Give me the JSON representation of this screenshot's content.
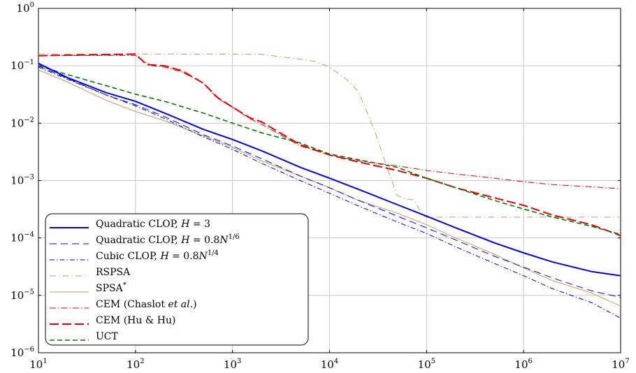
{
  "chart_data": {
    "type": "line",
    "title": "",
    "xlabel": "",
    "ylabel": "",
    "xscale": "log",
    "yscale": "log",
    "xlim": [
      10,
      10000000
    ],
    "ylim": [
      1e-06,
      1
    ],
    "grid": true,
    "legend_position": "bottom-left",
    "x_ticks": [
      {
        "value": 10,
        "base": "10",
        "exp": "1"
      },
      {
        "value": 100,
        "base": "10",
        "exp": "2"
      },
      {
        "value": 1000,
        "base": "10",
        "exp": "3"
      },
      {
        "value": 10000,
        "base": "10",
        "exp": "4"
      },
      {
        "value": 100000,
        "base": "10",
        "exp": "5"
      },
      {
        "value": 1000000,
        "base": "10",
        "exp": "6"
      },
      {
        "value": 10000000,
        "base": "10",
        "exp": "7"
      }
    ],
    "y_ticks": [
      {
        "value": 1e-06,
        "base": "10",
        "exp": "−6"
      },
      {
        "value": 1e-05,
        "base": "10",
        "exp": "−5"
      },
      {
        "value": 0.0001,
        "base": "10",
        "exp": "−4"
      },
      {
        "value": 0.001,
        "base": "10",
        "exp": "−3"
      },
      {
        "value": 0.01,
        "base": "10",
        "exp": "−2"
      },
      {
        "value": 0.1,
        "base": "10",
        "exp": "−1"
      },
      {
        "value": 1,
        "base": "10",
        "exp": "0"
      }
    ],
    "series": [
      {
        "name": "Quadratic CLOP, H = 3",
        "legend": [
          {
            "t": "Quadratic CLOP, "
          },
          {
            "t": "H",
            "i": true
          },
          {
            "t": " = 3"
          }
        ],
        "color": "#0000e6",
        "width": 2.0,
        "dash": "",
        "points": [
          [
            10,
            0.11
          ],
          [
            20,
            0.062
          ],
          [
            50,
            0.034
          ],
          [
            100,
            0.024
          ],
          [
            200,
            0.015
          ],
          [
            500,
            0.0078
          ],
          [
            1000,
            0.0052
          ],
          [
            2000,
            0.0033
          ],
          [
            5000,
            0.0017
          ],
          [
            10000,
            0.0011
          ],
          [
            20000,
            0.0007
          ],
          [
            50000,
            0.00038
          ],
          [
            100000,
            0.00024
          ],
          [
            200000,
            0.00015
          ],
          [
            500000,
            8.2e-05
          ],
          [
            1000000,
            5.5e-05
          ],
          [
            2000000,
            3.8e-05
          ],
          [
            5000000,
            2.6e-05
          ],
          [
            10000000,
            2.2e-05
          ]
        ]
      },
      {
        "name": "Quadratic CLOP, H = 0.8N^(1/6)",
        "legend": [
          {
            "t": "Quadratic CLOP, "
          },
          {
            "t": "H",
            "i": true
          },
          {
            "t": " = 0.8"
          },
          {
            "t": "N",
            "i": true
          },
          {
            "t": "1/6",
            "sup": true
          }
        ],
        "color": "#0000e6",
        "width": 1.0,
        "dash": "10,6",
        "points": [
          [
            10,
            0.1
          ],
          [
            20,
            0.06
          ],
          [
            50,
            0.031
          ],
          [
            100,
            0.021
          ],
          [
            200,
            0.013
          ],
          [
            500,
            0.0063
          ],
          [
            1000,
            0.004
          ],
          [
            2000,
            0.0024
          ],
          [
            5000,
            0.0012
          ],
          [
            10000,
            0.00075
          ],
          [
            20000,
            0.00045
          ],
          [
            50000,
            0.00024
          ],
          [
            100000,
            0.00015
          ],
          [
            200000,
            9.2e-05
          ],
          [
            500000,
            4.8e-05
          ],
          [
            1000000,
            3.1e-05
          ],
          [
            2000000,
            2e-05
          ],
          [
            5000000,
            1.2e-05
          ],
          [
            10000000,
            9.2e-06
          ]
        ]
      },
      {
        "name": "Cubic CLOP, H = 0.8N^(1/4)",
        "legend": [
          {
            "t": "Cubic CLOP, "
          },
          {
            "t": "H",
            "i": true
          },
          {
            "t": " = 0.8"
          },
          {
            "t": "N",
            "i": true
          },
          {
            "t": "1/4",
            "sup": true
          }
        ],
        "color": "#0000e6",
        "width": 1.0,
        "dash": "7,3,1.5,3",
        "points": [
          [
            10,
            0.095
          ],
          [
            20,
            0.058
          ],
          [
            50,
            0.031
          ],
          [
            100,
            0.02
          ],
          [
            200,
            0.012
          ],
          [
            500,
            0.0058
          ],
          [
            1000,
            0.0035
          ],
          [
            2000,
            0.002
          ],
          [
            5000,
            0.001
          ],
          [
            10000,
            0.0006
          ],
          [
            20000,
            0.00036
          ],
          [
            50000,
            0.00019
          ],
          [
            100000,
            0.00012
          ],
          [
            200000,
            7e-05
          ],
          [
            500000,
            3.6e-05
          ],
          [
            1000000,
            2.2e-05
          ],
          [
            2000000,
            1.3e-05
          ],
          [
            5000000,
            7.5e-06
          ],
          [
            10000000,
            4e-06
          ]
        ]
      },
      {
        "name": "RSPSA",
        "legend": [
          {
            "t": "RSPSA"
          }
        ],
        "color": "#c69a5e",
        "width": 1.0,
        "dash": "9,4,1.5,4",
        "points": [
          [
            10,
            0.16
          ],
          [
            100,
            0.16
          ],
          [
            1000,
            0.16
          ],
          [
            2000,
            0.158
          ],
          [
            5000,
            0.13
          ],
          [
            7000,
            0.12
          ],
          [
            10000,
            0.095
          ],
          [
            15000,
            0.058
          ],
          [
            20000,
            0.035
          ],
          [
            30000,
            0.0065
          ],
          [
            40000,
            0.0015
          ],
          [
            50000,
            0.00055
          ],
          [
            60000,
            0.00048
          ],
          [
            75000,
            0.00046
          ],
          [
            90000,
            0.00025
          ],
          [
            100000,
            0.00023
          ],
          [
            1000000,
            0.00023
          ],
          [
            10000000,
            0.00023
          ]
        ]
      },
      {
        "name": "SPSA*",
        "legend": [
          {
            "t": "SPSA"
          },
          {
            "t": "*",
            "sup": true
          }
        ],
        "color": "#c69a5e",
        "width": 1.0,
        "dash": "",
        "points": [
          [
            10,
            0.085
          ],
          [
            20,
            0.052
          ],
          [
            50,
            0.025
          ],
          [
            100,
            0.016
          ],
          [
            200,
            0.011
          ],
          [
            500,
            0.006
          ],
          [
            1000,
            0.0038
          ],
          [
            2000,
            0.0022
          ],
          [
            5000,
            0.0012
          ],
          [
            10000,
            0.00075
          ],
          [
            20000,
            0.00045
          ],
          [
            50000,
            0.00027
          ],
          [
            100000,
            0.00017
          ],
          [
            200000,
            0.0001
          ],
          [
            500000,
            5.2e-05
          ],
          [
            1000000,
            3e-05
          ],
          [
            2000000,
            1.8e-05
          ],
          [
            5000000,
            1.1e-05
          ],
          [
            10000000,
            6.5e-06
          ]
        ]
      },
      {
        "name": "CEM (Chaslot et al.)",
        "legend": [
          {
            "t": "CEM (Chaslot "
          },
          {
            "t": "et al.",
            "i": true
          },
          {
            "t": ")"
          }
        ],
        "color": "#e60000",
        "width": 1.0,
        "dash": "9,3,1.5,3",
        "points": [
          [
            10,
            0.15
          ],
          [
            100,
            0.152
          ],
          [
            120,
            0.12
          ],
          [
            150,
            0.1
          ],
          [
            200,
            0.095
          ],
          [
            300,
            0.078
          ],
          [
            500,
            0.05
          ],
          [
            700,
            0.027
          ],
          [
            1000,
            0.019
          ],
          [
            1500,
            0.012
          ],
          [
            2000,
            0.0095
          ],
          [
            3000,
            0.0065
          ],
          [
            5000,
            0.004
          ],
          [
            10000,
            0.0028
          ],
          [
            20000,
            0.0022
          ],
          [
            50000,
            0.0018
          ],
          [
            100000,
            0.0015
          ],
          [
            200000,
            0.0013
          ],
          [
            500000,
            0.0011
          ],
          [
            1000000,
            0.00095
          ],
          [
            2000000,
            0.00085
          ],
          [
            5000000,
            0.00078
          ],
          [
            10000000,
            0.00072
          ]
        ]
      },
      {
        "name": "CEM (Hu & Hu)",
        "legend": [
          {
            "t": "CEM (Hu & Hu)"
          }
        ],
        "color": "#e60000",
        "width": 2.0,
        "dash": "13,5",
        "points": [
          [
            10,
            0.15
          ],
          [
            100,
            0.16
          ],
          [
            130,
            0.105
          ],
          [
            200,
            0.1
          ],
          [
            300,
            0.082
          ],
          [
            500,
            0.05
          ],
          [
            700,
            0.028
          ],
          [
            1000,
            0.019
          ],
          [
            1500,
            0.0125
          ],
          [
            2000,
            0.0105
          ],
          [
            3000,
            0.007
          ],
          [
            5000,
            0.0042
          ],
          [
            10000,
            0.0028
          ],
          [
            20000,
            0.0021
          ],
          [
            50000,
            0.0015
          ],
          [
            100000,
            0.0011
          ],
          [
            200000,
            0.00075
          ],
          [
            500000,
            0.0005
          ],
          [
            1000000,
            0.00037
          ],
          [
            2000000,
            0.00025
          ],
          [
            5000000,
            0.00017
          ],
          [
            10000000,
            0.00011
          ]
        ]
      },
      {
        "name": "UCT",
        "legend": [
          {
            "t": "UCT"
          }
        ],
        "color": "#007a00",
        "width": 1.6,
        "dash": "7,4",
        "points": [
          [
            10,
            0.1
          ],
          [
            20,
            0.07
          ],
          [
            50,
            0.045
          ],
          [
            100,
            0.032
          ],
          [
            200,
            0.024
          ],
          [
            500,
            0.015
          ],
          [
            1000,
            0.01
          ],
          [
            2000,
            0.0068
          ],
          [
            5000,
            0.0045
          ],
          [
            10000,
            0.0029
          ],
          [
            20000,
            0.0023
          ],
          [
            50000,
            0.0017
          ],
          [
            100000,
            0.0011
          ],
          [
            200000,
            0.00075
          ],
          [
            500000,
            0.00045
          ],
          [
            1000000,
            0.00032
          ],
          [
            2000000,
            0.00023
          ],
          [
            5000000,
            0.00016
          ],
          [
            10000000,
            0.000115
          ]
        ]
      }
    ]
  }
}
